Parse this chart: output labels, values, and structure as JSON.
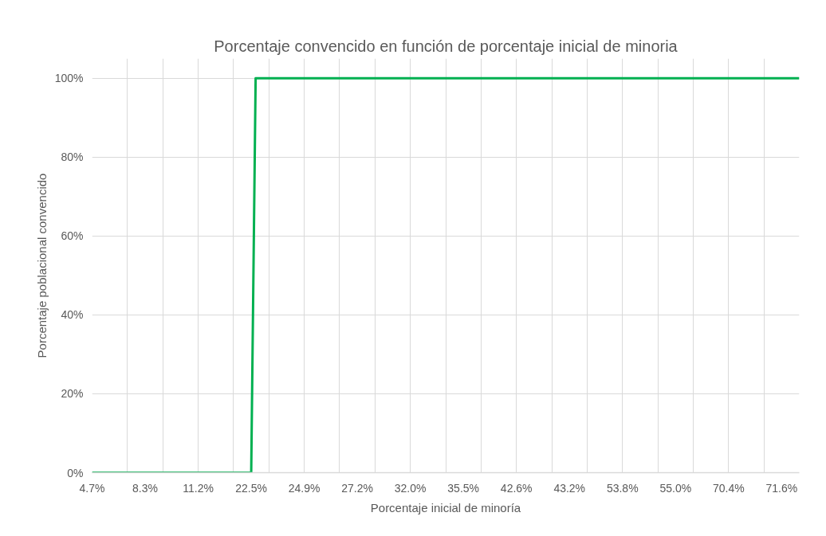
{
  "chart_data": {
    "type": "line",
    "title": "Porcentaje convencido en función de porcentaje inicial de minoria",
    "xlabel": "Porcentaje inicial de minoría",
    "ylabel": "Porcentaje poblacional convencido",
    "categories": [
      "4.7%",
      null,
      null,
      null,
      null,
      null,
      null,
      null,
      null,
      null,
      null,
      null,
      "8.3%",
      null,
      null,
      null,
      null,
      null,
      null,
      null,
      null,
      null,
      null,
      null,
      "11.2%",
      null,
      null,
      null,
      null,
      null,
      null,
      null,
      null,
      null,
      null,
      null,
      "22.5%",
      null,
      null,
      null,
      null,
      null,
      null,
      null,
      null,
      null,
      null,
      null,
      "24.9%",
      null,
      null,
      null,
      null,
      null,
      null,
      null,
      null,
      null,
      null,
      null,
      "27.2%",
      null,
      null,
      null,
      null,
      null,
      null,
      null,
      null,
      null,
      null,
      null,
      "32.0%",
      null,
      null,
      null,
      null,
      null,
      null,
      null,
      null,
      null,
      null,
      null,
      "35.5%",
      null,
      null,
      null,
      null,
      null,
      null,
      null,
      null,
      null,
      null,
      null,
      "42.6%",
      null,
      null,
      null,
      null,
      null,
      null,
      null,
      null,
      null,
      null,
      null,
      "43.2%",
      null,
      null,
      null,
      null,
      null,
      null,
      null,
      null,
      null,
      null,
      null,
      "53.8%",
      null,
      null,
      null,
      null,
      null,
      null,
      null,
      null,
      null,
      null,
      null,
      "55.0%",
      null,
      null,
      null,
      null,
      null,
      null,
      null,
      null,
      null,
      null,
      null,
      "70.4%",
      null,
      null,
      null,
      null,
      null,
      null,
      null,
      null,
      null,
      null,
      null,
      "71.6%",
      null,
      null,
      null,
      null
    ],
    "series": [
      {
        "color": "#00b050",
        "values": [
          0,
          0,
          0,
          0,
          0,
          0,
          0,
          0,
          0,
          0,
          0,
          0,
          0,
          0,
          0,
          0,
          0,
          0,
          0,
          0,
          0,
          0,
          0,
          0,
          0,
          0,
          0,
          0,
          0,
          0,
          0,
          0,
          0,
          0,
          0,
          0,
          0,
          100,
          100,
          100,
          100,
          100,
          100,
          100,
          100,
          100,
          100,
          100,
          100,
          100,
          100,
          100,
          100,
          100,
          100,
          100,
          100,
          100,
          100,
          100,
          100,
          100,
          100,
          100,
          100,
          100,
          100,
          100,
          100,
          100,
          100,
          100,
          100,
          100,
          100,
          100,
          100,
          100,
          100,
          100,
          100,
          100,
          100,
          100,
          100,
          100,
          100,
          100,
          100,
          100,
          100,
          100,
          100,
          100,
          100,
          100,
          100,
          100,
          100,
          100,
          100,
          100,
          100,
          100,
          100,
          100,
          100,
          100,
          100,
          100,
          100,
          100,
          100,
          100,
          100,
          100,
          100,
          100,
          100,
          100,
          100,
          100,
          100,
          100,
          100,
          100,
          100,
          100,
          100,
          100,
          100,
          100,
          100,
          100,
          100,
          100,
          100,
          100,
          100,
          100,
          100,
          100,
          100,
          100,
          100,
          100,
          100,
          100,
          100,
          100,
          100,
          100,
          100,
          100,
          100,
          100,
          100,
          100,
          100,
          100,
          100
        ]
      }
    ],
    "ylim": [
      0,
      105
    ],
    "yticks": [
      {
        "value": 0,
        "label": "0%"
      },
      {
        "value": 20,
        "label": "20%"
      },
      {
        "value": 40,
        "label": "40%"
      },
      {
        "value": 60,
        "label": "60%"
      },
      {
        "value": 80,
        "label": "80%"
      },
      {
        "value": 100,
        "label": "100%"
      }
    ],
    "grid": true,
    "marker": "none",
    "line_style": "solid"
  }
}
